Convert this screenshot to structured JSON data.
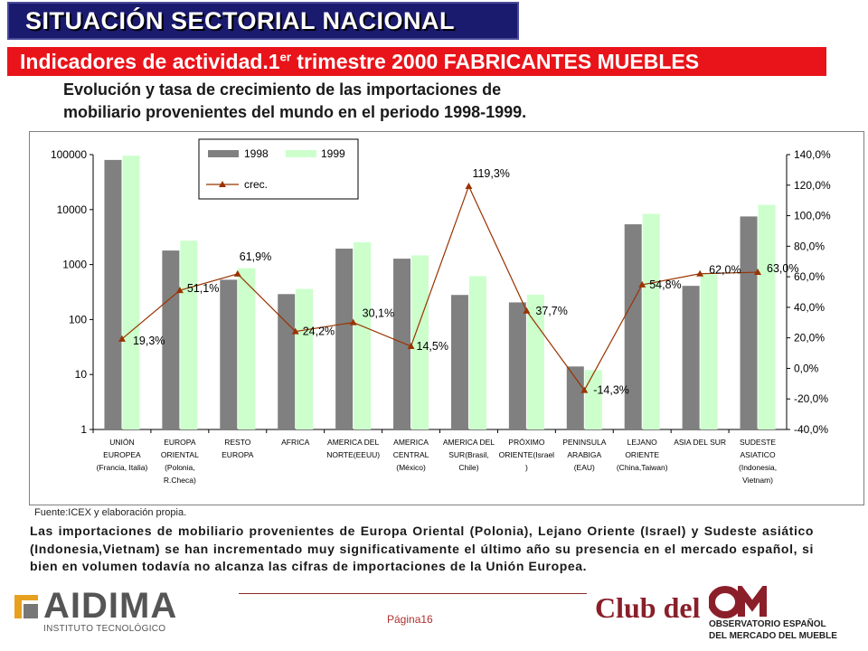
{
  "header": {
    "title": "SITUACIÓN SECTORIAL NACIONAL",
    "subtitle_prefix": "Indicadores de actividad.1",
    "subtitle_sup": "er",
    "subtitle_suffix": " trimestre 2000 FABRICANTES MUEBLES"
  },
  "heading_line1": "Evolución y tasa de crecimiento de las importaciones de",
  "heading_line2": "mobiliario provenientes del mundo en el periodo 1998-1999.",
  "source": "Fuente:ICEX y elaboración propia.",
  "body": "Las importaciones de mobiliario provenientes de Europa Oriental (Polonia), Lejano Oriente (Israel) y Sudeste asiático (Indonesia,Vietnam) se han incrementado muy significativamente el último año su presencia en el mercado español, si bien en volumen todavía no alcanza las cifras de importaciones de la Unión Europea.",
  "footer": {
    "page": "Página16",
    "aidima_name": "AIDIMA",
    "aidima_sub": "INSTITUTO TECNOLÓGICO",
    "club": "Club del",
    "om_line1": "OBSERVATORIO ESPAÑOL",
    "om_line2": "DEL MERCADO DEL MUEBLE"
  },
  "colors": {
    "title_bg": "#1a1a6e",
    "subtitle_bg": "#e8141a",
    "bar_1998": "#808080",
    "bar_1999": "#ccffcc",
    "line": "#993300",
    "marker": "#993300"
  },
  "chart_data": {
    "type": "bar",
    "categories": [
      [
        "UNIÓN",
        "EUROPEA",
        "(Francia, Italia)"
      ],
      [
        "EUROPA",
        "ORIENTAL",
        "(Polonia,",
        "R.Checa)"
      ],
      [
        "RESTO",
        "EUROPA"
      ],
      [
        "AFRICA"
      ],
      [
        "AMERICA DEL",
        "NORTE(EEUU)"
      ],
      [
        "AMERICA",
        "CENTRAL",
        "(México)"
      ],
      [
        "AMERICA DEL",
        "SUR(Brasil,",
        "Chile)"
      ],
      [
        "PRÓXIMO",
        "ORIENTE(Israel",
        ")"
      ],
      [
        "PENINSULA",
        "ARABIGA",
        "(EAU)"
      ],
      [
        "LEJANO",
        "ORIENTE",
        "(China,Taiwan)"
      ],
      [
        "ASIA DEL SUR"
      ],
      [
        "SUDESTE",
        "ASIATICO",
        "(Indonesia,",
        "Vietnam)"
      ]
    ],
    "series": [
      {
        "name": "1998",
        "values": [
          80000,
          1800,
          530,
          290,
          1950,
          1280,
          280,
          205,
          14,
          5400,
          410,
          7500
        ]
      },
      {
        "name": "1999",
        "values": [
          95500,
          2720,
          860,
          360,
          2540,
          1470,
          615,
          283,
          12,
          8370,
          664,
          12200
        ]
      }
    ],
    "line": {
      "name": "crec.",
      "values": [
        19.3,
        51.1,
        61.9,
        24.2,
        30.1,
        14.5,
        119.3,
        37.7,
        -14.3,
        54.8,
        62.0,
        63.0
      ],
      "labels": [
        "19,3%",
        "51,1%",
        "61,9%",
        "24,2%",
        "30,1%",
        "14,5%",
        "119,3%",
        "37,7%",
        "-14,3%",
        "54,8%",
        "62,0%",
        "63,0%"
      ]
    },
    "y_left": {
      "scale": "log",
      "ylim": [
        1,
        100000
      ],
      "ticks": [
        "1",
        "10",
        "100",
        "1000",
        "10000",
        "100000"
      ]
    },
    "y_right": {
      "ylim": [
        -40,
        140
      ],
      "ticks": [
        "-40,0%",
        "-20,0%",
        "0,0%",
        "20,0%",
        "40,0%",
        "60,0%",
        "80,0%",
        "100,0%",
        "120,0%",
        "140,0%"
      ]
    },
    "legend": {
      "position": "top-left",
      "items": [
        "1998",
        "1999",
        "crec."
      ]
    },
    "grid": false
  }
}
